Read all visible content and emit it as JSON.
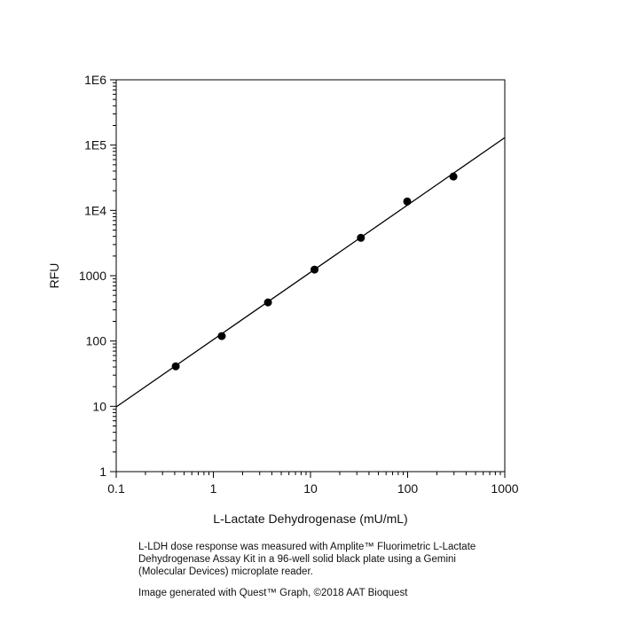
{
  "chart_data": {
    "type": "scatter",
    "xlabel": "L-Lactate Dehydrogenase (mU/mL)",
    "ylabel": "RFU",
    "x": [
      0.41,
      1.22,
      3.65,
      11,
      33,
      99,
      296
    ],
    "values": [
      41,
      119,
      390,
      1240,
      3800,
      13700,
      33000
    ],
    "color": "#000000",
    "fit": {
      "x": [
        0.1,
        1000
      ],
      "values": [
        9.8,
        130000
      ]
    },
    "xlim": [
      0.1,
      1000
    ],
    "ylim": [
      1,
      1000000
    ],
    "xticks": [
      0.1,
      1,
      10,
      100,
      1000
    ],
    "yticks": [
      1,
      10,
      100,
      1000,
      {
        "value": 10000,
        "label": "1E4"
      },
      {
        "value": 100000,
        "label": "1E5"
      },
      {
        "value": 1000000,
        "label": "1E6"
      }
    ],
    "xlog": true,
    "ylog": true,
    "minor_ticks": true,
    "caption": [
      "L-LDH dose response was measured with Amplite™ Fluorimetric L-Lactate",
      "Dehydrogenase Assay Kit in a 96-well solid black plate using a Gemini",
      "(Molecular Devices) microplate reader."
    ],
    "credit": "Image generated with Quest™ Graph, ©2018 AAT Bioquest"
  }
}
